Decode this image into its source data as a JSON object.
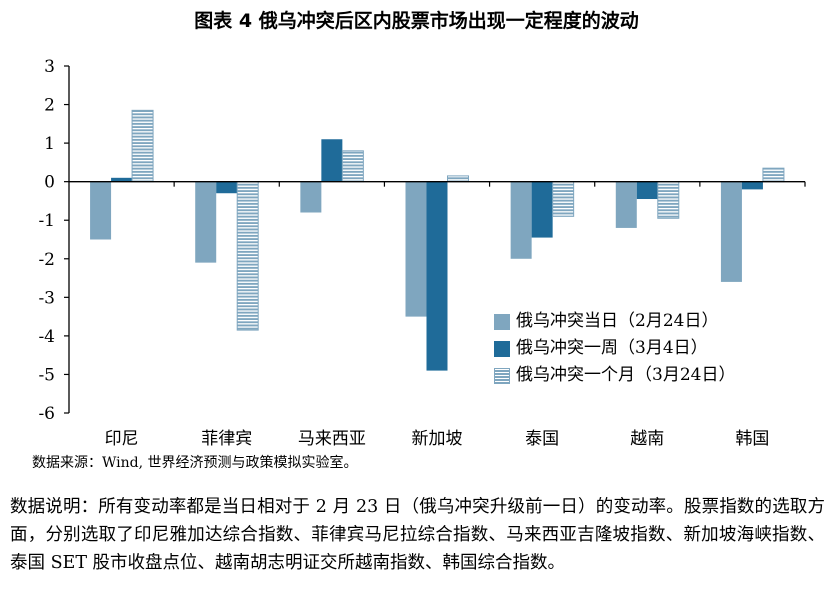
{
  "title": "图表 4  俄乌冲突后区内股票市场出现一定程度的波动",
  "chart_data": {
    "type": "bar",
    "categories": [
      "印尼",
      "菲律宾",
      "马来西亚",
      "新加坡",
      "泰国",
      "越南",
      "韩国"
    ],
    "series": [
      {
        "name": "俄乌冲突当日（2月24日）",
        "values": [
          -1.5,
          -2.1,
          -0.8,
          -3.5,
          -2.0,
          -1.2,
          -2.6
        ],
        "color": "#7fa6bf",
        "pattern": "solid"
      },
      {
        "name": "俄乌冲突一周（3月4日）",
        "values": [
          0.1,
          -0.3,
          1.1,
          -4.9,
          -1.45,
          -0.45,
          -0.2
        ],
        "color": "#1f6b99",
        "pattern": "solid"
      },
      {
        "name": "俄乌冲突一个月（3月24日）",
        "values": [
          1.85,
          -3.85,
          0.8,
          0.15,
          -0.9,
          -0.95,
          0.35
        ],
        "color": "#7fa6bf",
        "pattern": "horizontal-stripes"
      }
    ],
    "yticks": [
      "3",
      "2",
      "1",
      "0",
      "-1",
      "-2",
      "-3",
      "-4",
      "-5",
      "-6"
    ],
    "ylim": [
      -6,
      3
    ],
    "grid": false,
    "legend_position": "bottom-right"
  },
  "source": "数据来源：Wind, 世界经济预测与政策模拟实验室。",
  "note": "数据说明：所有变动率都是当日相对于 2 月 23 日（俄乌冲突升级前一日）的变动率。股票指数的选取方面，分别选取了印尼雅加达综合指数、菲律宾马尼拉综合指数、马来西亚吉隆坡指数、新加坡海峡指数、泰国 SET 股市收盘点位、越南胡志明证交所越南指数、韩国综合指数。"
}
